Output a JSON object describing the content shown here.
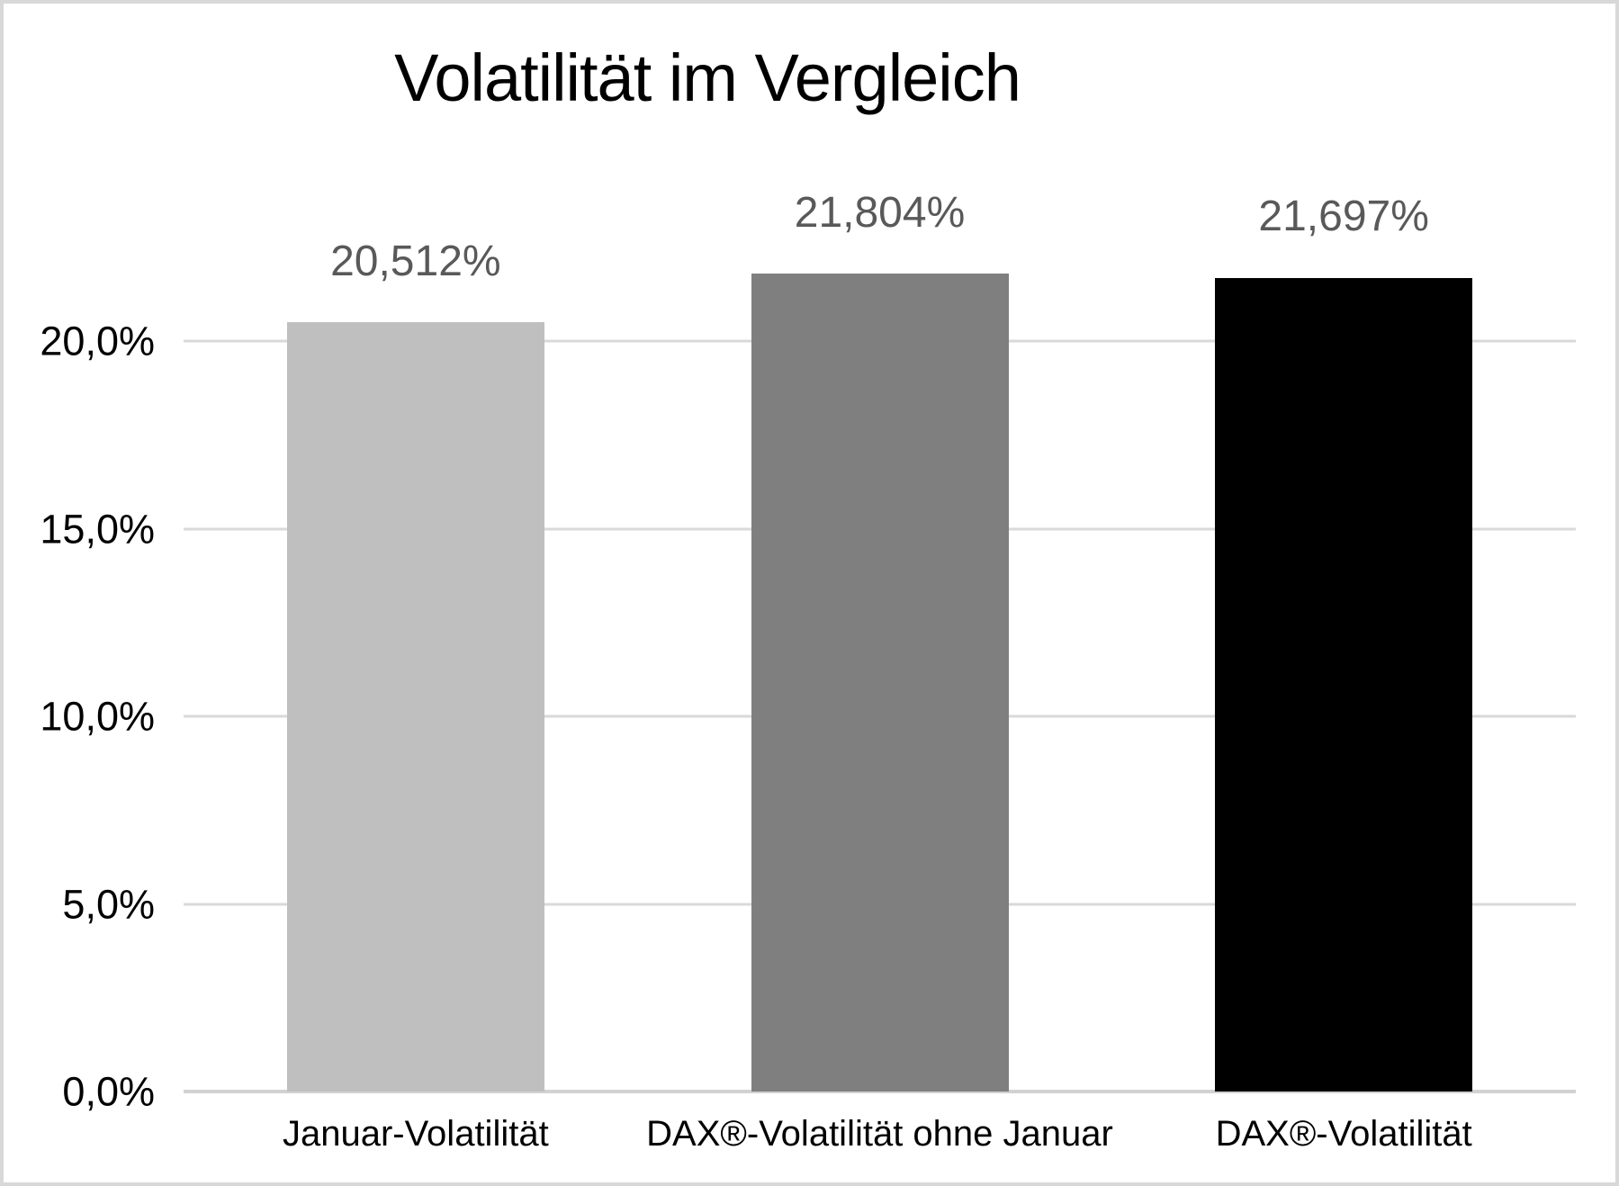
{
  "chart_data": {
    "type": "bar",
    "title": "Volatilität im Vergleich",
    "categories": [
      "Januar-Volatilität",
      "DAX®-Volatilität ohne Januar",
      "DAX®-Volatilität"
    ],
    "values": [
      20.512,
      21.804,
      21.697
    ],
    "value_labels": [
      "20,512%",
      "21,804%",
      "21,697%"
    ],
    "bar_colors": [
      "#bfbfbf",
      "#7f7f7f",
      "#000000"
    ],
    "yticks": [
      0,
      5,
      10,
      15,
      20
    ],
    "ytick_labels": [
      "0,0%",
      "5,0%",
      "10,0%",
      "15,0%",
      "20,0%"
    ],
    "ylim": [
      0,
      22
    ],
    "xlabel": "",
    "ylabel": "",
    "grid": true,
    "legend": false,
    "value_label_color": "#595959",
    "gridline_color": "#d9d9d9"
  }
}
